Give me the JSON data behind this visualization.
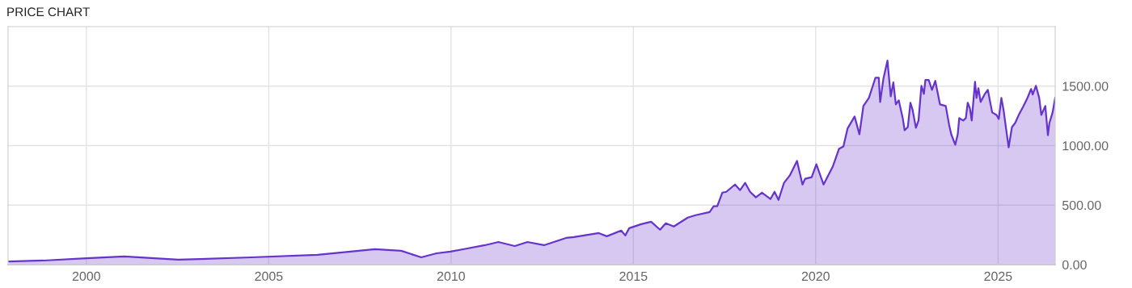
{
  "chart_data": {
    "type": "area",
    "title": "PRICE CHART",
    "x": [
      "1997-11-15",
      "1998-10-25",
      "2000-01-01",
      "2001-01-15",
      "2002-07-10",
      "2004-07-08",
      "2006-05-05",
      "2007-12-01",
      "2008-08-20",
      "2009-03-08",
      "2009-08-08",
      "2009-12-25",
      "2010-05-01",
      "2010-12-05",
      "2011-04-20",
      "2011-10-01",
      "2012-02-05",
      "2012-07-20",
      "2013-02-25",
      "2013-05-15",
      "2014-01-20",
      "2014-04-10",
      "2014-09-01",
      "2014-10-12",
      "2014-11-20",
      "2015-03-20",
      "2015-06-28",
      "2015-09-25",
      "2015-11-22",
      "2016-02-10",
      "2016-06-28",
      "2016-09-15",
      "2017-02-03",
      "2017-03-15",
      "2017-04-20",
      "2017-06-10",
      "2017-07-20",
      "2017-10-15",
      "2017-12-05",
      "2018-01-25",
      "2018-03-15",
      "2018-05-12",
      "2018-07-12",
      "2018-10-05",
      "2018-11-15",
      "2018-12-25",
      "2019-02-18",
      "2019-04-16",
      "2019-06-28",
      "2019-08-22",
      "2019-09-17",
      "2019-11-22",
      "2020-01-08",
      "2020-03-20",
      "2020-06-20",
      "2020-08-22",
      "2020-10-05",
      "2020-11-15",
      "2021-01-25",
      "2021-03-14",
      "2021-04-23",
      "2021-06-17",
      "2021-08-22",
      "2021-09-24",
      "2021-10-08",
      "2021-11-10",
      "2021-12-20",
      "2022-01-22",
      "2022-02-17",
      "2022-03-14",
      "2022-04-12",
      "2022-05-22",
      "2022-06-10",
      "2022-07-12",
      "2022-08-07",
      "2022-08-29",
      "2022-10-01",
      "2022-10-27",
      "2022-11-25",
      "2022-12-20",
      "2023-01-04",
      "2023-02-06",
      "2023-03-11",
      "2023-04-13",
      "2023-05-30",
      "2023-07-27",
      "2023-08-29",
      "2023-09-20",
      "2023-10-30",
      "2023-11-24",
      "2023-12-09",
      "2024-01-18",
      "2024-02-13",
      "2024-03-03",
      "2024-03-25",
      "2024-04-12",
      "2024-05-15",
      "2024-05-30",
      "2024-06-18",
      "2024-07-10",
      "2024-08-18",
      "2024-09-20",
      "2024-11-03",
      "2024-12-16",
      "2025-01-08",
      "2025-02-03",
      "2025-02-25",
      "2025-03-22",
      "2025-04-17",
      "2025-05-20",
      "2025-06-21",
      "2025-07-31",
      "2025-09-09",
      "2025-10-19",
      "2025-11-28",
      "2025-12-14",
      "2026-01-15",
      "2026-02-17",
      "2026-03-10",
      "2026-04-19",
      "2026-05-15",
      "2026-05-30",
      "2026-07-01",
      "2026-07-27"
    ],
    "series": [
      {
        "color": "#6633cc",
        "values": [
          27,
          34,
          54,
          68,
          41,
          61,
          82,
          129,
          116,
          61,
          95,
          109,
          129,
          163,
          190,
          156,
          190,
          163,
          224,
          231,
          265,
          238,
          286,
          245,
          306,
          340,
          360,
          293,
          347,
          320,
          395,
          415,
          442,
          490,
          490,
          605,
          612,
          673,
          626,
          687,
          612,
          565,
          605,
          551,
          612,
          544,
          687,
          748,
          871,
          673,
          721,
          735,
          843,
          673,
          823,
          973,
          993,
          1143,
          1245,
          1095,
          1333,
          1401,
          1571,
          1571,
          1367,
          1565,
          1714,
          1415,
          1531,
          1347,
          1381,
          1231,
          1129,
          1156,
          1361,
          1299,
          1150,
          1211,
          1503,
          1435,
          1551,
          1551,
          1469,
          1544,
          1347,
          1333,
          1177,
          1095,
          1007,
          1095,
          1231,
          1211,
          1231,
          1361,
          1313,
          1211,
          1537,
          1401,
          1483,
          1367,
          1429,
          1469,
          1279,
          1258,
          1224,
          1401,
          1299,
          1143,
          986,
          1156,
          1190,
          1265,
          1327,
          1395,
          1476,
          1429,
          1503,
          1401,
          1258,
          1333,
          1088,
          1190,
          1279,
          1401
        ]
      }
    ],
    "xlim": [
      "1997-11-08",
      "2026-07-27"
    ],
    "xticks": [
      {
        "value": "2000-01-01",
        "label": "2000"
      },
      {
        "value": "2005-01-01",
        "label": "2005"
      },
      {
        "value": "2010-01-01",
        "label": "2010"
      },
      {
        "value": "2015-01-01",
        "label": "2015"
      },
      {
        "value": "2020-01-01",
        "label": "2020"
      },
      {
        "value": "2025-01-01",
        "label": "2025"
      }
    ],
    "ylim": [
      0,
      2000
    ],
    "yticks": [
      {
        "value": 0,
        "label": "0.00"
      },
      {
        "value": 500,
        "label": "500.00"
      },
      {
        "value": 1000,
        "label": "1000.00"
      },
      {
        "value": 1500,
        "label": "1500.00"
      }
    ],
    "grid": true,
    "legend": false
  }
}
